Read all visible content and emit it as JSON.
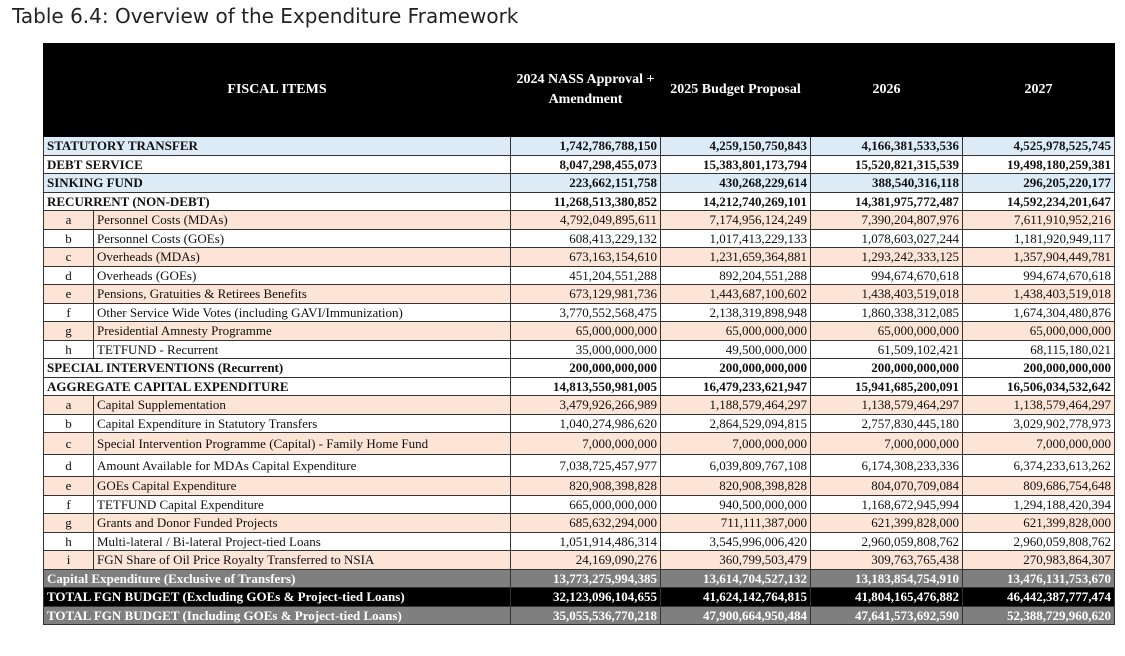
{
  "title": "Table 6.4: Overview of the Expenditure Framework",
  "table": {
    "columns": [
      "FISCAL ITEMS",
      "2024 NASS Approval + Amendment",
      "2025 Budget Proposal",
      "2026",
      "2027"
    ],
    "rows": [
      {
        "label": "STATUTORY TRANSFER",
        "values": [
          "1,742,786,788,150",
          "4,259,150,750,843",
          "4,166,381,533,536",
          "4,525,978,525,745"
        ]
      },
      {
        "label": "DEBT SERVICE",
        "values": [
          "8,047,298,455,073",
          "15,383,801,173,794",
          "15,520,821,315,539",
          "19,498,180,259,381"
        ]
      },
      {
        "label": "SINKING FUND",
        "values": [
          "223,662,151,758",
          "430,268,229,614",
          "388,540,316,118",
          "296,205,220,177"
        ]
      },
      {
        "label": "RECURRENT (NON-DEBT)",
        "values": [
          "11,268,513,380,852",
          "14,212,740,269,101",
          "14,381,975,772,487",
          "14,592,234,201,647"
        ]
      },
      {
        "letter": "a",
        "label": "Personnel Costs (MDAs)",
        "values": [
          "4,792,049,895,611",
          "7,174,956,124,249",
          "7,390,204,807,976",
          "7,611,910,952,216"
        ]
      },
      {
        "letter": "b",
        "label": "Personnel Costs (GOEs)",
        "values": [
          "608,413,229,132",
          "1,017,413,229,133",
          "1,078,603,027,244",
          "1,181,920,949,117"
        ]
      },
      {
        "letter": "c",
        "label": "Overheads (MDAs)",
        "values": [
          "673,163,154,610",
          "1,231,659,364,881",
          "1,293,242,333,125",
          "1,357,904,449,781"
        ]
      },
      {
        "letter": "d",
        "label": "Overheads (GOEs)",
        "values": [
          "451,204,551,288",
          "892,204,551,288",
          "994,674,670,618",
          "994,674,670,618"
        ]
      },
      {
        "letter": "e",
        "label": "Pensions, Gratuities & Retirees Benefits",
        "values": [
          "673,129,981,736",
          "1,443,687,100,602",
          "1,438,403,519,018",
          "1,438,403,519,018"
        ]
      },
      {
        "letter": "f",
        "label": "Other Service Wide Votes (including GAVI/Immunization)",
        "values": [
          "3,770,552,568,475",
          "2,138,319,898,948",
          "1,860,338,312,085",
          "1,674,304,480,876"
        ]
      },
      {
        "letter": "g",
        "label": "Presidential Amnesty Programme",
        "values": [
          "65,000,000,000",
          "65,000,000,000",
          "65,000,000,000",
          "65,000,000,000"
        ]
      },
      {
        "letter": "h",
        "label": "TETFUND - Recurrent",
        "values": [
          "35,000,000,000",
          "49,500,000,000",
          "61,509,102,421",
          "68,115,180,021"
        ]
      },
      {
        "label": "SPECIAL INTERVENTIONS (Recurrent)",
        "values": [
          "200,000,000,000",
          "200,000,000,000",
          "200,000,000,000",
          "200,000,000,000"
        ]
      },
      {
        "label": "AGGREGATE CAPITAL EXPENDITURE",
        "values": [
          "14,813,550,981,005",
          "16,479,233,621,947",
          "15,941,685,200,091",
          "16,506,034,532,642"
        ]
      },
      {
        "letter": "a",
        "label": "Capital Supplementation",
        "values": [
          "3,479,926,266,989",
          "1,188,579,464,297",
          "1,138,579,464,297",
          "1,138,579,464,297"
        ]
      },
      {
        "letter": "b",
        "label": "Capital Expenditure in Statutory Transfers",
        "values": [
          "1,040,274,986,620",
          "2,864,529,094,815",
          "2,757,830,445,180",
          "3,029,902,778,973"
        ]
      },
      {
        "letter": "c",
        "label": "Special Intervention Programme (Capital) - Family Home Fund",
        "values": [
          "7,000,000,000",
          "7,000,000,000",
          "7,000,000,000",
          "7,000,000,000"
        ]
      },
      {
        "letter": "d",
        "label": "Amount Available for MDAs Capital Expenditure",
        "values": [
          "7,038,725,457,977",
          "6,039,809,767,108",
          "6,174,308,233,336",
          "6,374,233,613,262"
        ]
      },
      {
        "letter": "e",
        "label": "GOEs Capital Expenditure",
        "values": [
          "820,908,398,828",
          "820,908,398,828",
          "804,070,709,084",
          "809,686,754,648"
        ]
      },
      {
        "letter": "f",
        "label": "TETFUND Capital Expenditure",
        "values": [
          "665,000,000,000",
          "940,500,000,000",
          "1,168,672,945,994",
          "1,294,188,420,394"
        ]
      },
      {
        "letter": "g",
        "label": "Grants and Donor Funded Projects",
        "values": [
          "685,632,294,000",
          "711,111,387,000",
          "621,399,828,000",
          "621,399,828,000"
        ]
      },
      {
        "letter": "h",
        "label": "Multi-lateral / Bi-lateral Project-tied Loans",
        "values": [
          "1,051,914,486,314",
          "3,545,996,006,420",
          "2,960,059,808,762",
          "2,960,059,808,762"
        ]
      },
      {
        "letter": "i",
        "label": "FGN Share of Oil Price Royalty Transferred to NSIA",
        "values": [
          "24,169,090,276",
          "360,799,503,479",
          "309,763,765,438",
          "270,983,864,307"
        ]
      },
      {
        "label": "Capital Expenditure (Exclusive of Transfers)",
        "values": [
          "13,773,275,994,385",
          "13,614,704,527,132",
          "13,183,854,754,910",
          "13,476,131,753,670"
        ]
      },
      {
        "label": "TOTAL FGN BUDGET (Excluding GOEs & Project-tied Loans)",
        "values": [
          "32,123,096,104,655",
          "41,624,142,764,815",
          "41,804,165,476,882",
          "46,442,387,777,474"
        ]
      },
      {
        "label": "TOTAL FGN BUDGET (Including GOEs & Project-tied Loans)",
        "values": [
          "35,055,536,770,218",
          "47,900,664,950,484",
          "47,641,573,692,590",
          "52,388,729,960,620"
        ]
      }
    ]
  }
}
